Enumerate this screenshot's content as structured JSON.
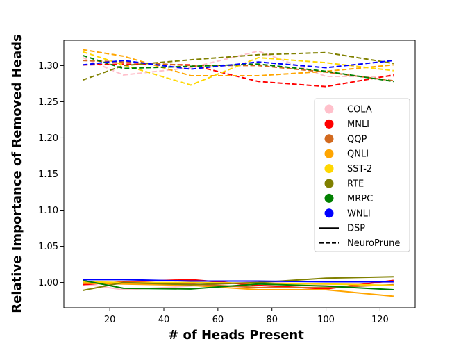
{
  "chart_data": {
    "type": "line",
    "title": "",
    "xlabel": "# of Heads Present",
    "ylabel": "Relative Importance of Removed Heads",
    "xlim": [
      3,
      133
    ],
    "ylim": [
      0.965,
      1.335
    ],
    "xticks": [
      20,
      40,
      60,
      80,
      100,
      120
    ],
    "yticks": [
      1.0,
      1.05,
      1.1,
      1.15,
      1.2,
      1.25,
      1.3
    ],
    "xtick_labels": [
      "20",
      "40",
      "60",
      "80",
      "100",
      "120"
    ],
    "ytick_labels": [
      "1.00",
      "1.05",
      "1.10",
      "1.15",
      "1.20",
      "1.25",
      "1.30"
    ],
    "x": [
      10,
      25,
      50,
      75,
      100,
      125
    ],
    "series": [
      {
        "name": "COLA",
        "method": "DSP",
        "color": "#ffc0cb",
        "values": [
          0.998,
          0.99,
          0.995,
          1.001,
          0.997,
          1.0
        ]
      },
      {
        "name": "MNLI",
        "method": "DSP",
        "color": "#ff0000",
        "values": [
          0.997,
          1.001,
          1.004,
          0.996,
          0.991,
          1.003
        ]
      },
      {
        "name": "QQP",
        "method": "DSP",
        "color": "#d2691e",
        "values": [
          0.999,
          1.0,
          0.998,
          0.993,
          0.993,
          0.997
        ]
      },
      {
        "name": "QNLI",
        "method": "DSP",
        "color": "#ffa500",
        "values": [
          0.999,
          0.998,
          0.996,
          0.99,
          0.99,
          0.981
        ]
      },
      {
        "name": "SST-2",
        "method": "DSP",
        "color": "#ffd700",
        "values": [
          1.001,
          1.0,
          1.0,
          0.999,
          0.998,
          0.996
        ]
      },
      {
        "name": "RTE",
        "method": "DSP",
        "color": "#808000",
        "values": [
          0.989,
          1.0,
          0.997,
          1.0,
          1.006,
          1.008
        ]
      },
      {
        "name": "MRPC",
        "method": "DSP",
        "color": "#008000",
        "values": [
          1.003,
          0.992,
          0.991,
          0.998,
          0.995,
          0.99
        ]
      },
      {
        "name": "WNLI",
        "method": "DSP",
        "color": "#0000ff",
        "values": [
          1.004,
          1.004,
          1.002,
          1.002,
          1.001,
          1.001
        ]
      },
      {
        "name": "COLA",
        "method": "NeuroPrune",
        "color": "#ffc0cb",
        "values": [
          1.311,
          1.287,
          1.297,
          1.32,
          1.285,
          1.285
        ]
      },
      {
        "name": "MNLI",
        "method": "NeuroPrune",
        "color": "#ff0000",
        "values": [
          1.301,
          1.302,
          1.301,
          1.278,
          1.271,
          1.287
        ]
      },
      {
        "name": "QQP",
        "method": "NeuroPrune",
        "color": "#d2691e",
        "values": [
          1.307,
          1.305,
          1.3,
          1.3,
          1.291,
          1.279
        ]
      },
      {
        "name": "QNLI",
        "method": "NeuroPrune",
        "color": "#ffa500",
        "values": [
          1.322,
          1.313,
          1.286,
          1.286,
          1.292,
          1.301
        ]
      },
      {
        "name": "SST-2",
        "method": "NeuroPrune",
        "color": "#ffd700",
        "values": [
          1.319,
          1.301,
          1.273,
          1.311,
          1.304,
          1.293
        ]
      },
      {
        "name": "RTE",
        "method": "NeuroPrune",
        "color": "#808000",
        "values": [
          1.28,
          1.3,
          1.308,
          1.315,
          1.318,
          1.303
        ]
      },
      {
        "name": "MRPC",
        "method": "NeuroPrune",
        "color": "#008000",
        "values": [
          1.314,
          1.296,
          1.299,
          1.302,
          1.292,
          1.278
        ]
      },
      {
        "name": "WNLI",
        "method": "NeuroPrune",
        "color": "#0000ff",
        "values": [
          1.301,
          1.307,
          1.295,
          1.305,
          1.297,
          1.307
        ]
      }
    ],
    "legend": {
      "placement": "center-right",
      "tasks": [
        {
          "label": "COLA",
          "color": "#ffc0cb"
        },
        {
          "label": "MNLI",
          "color": "#ff0000"
        },
        {
          "label": "QQP",
          "color": "#d2691e"
        },
        {
          "label": "QNLI",
          "color": "#ffa500"
        },
        {
          "label": "SST-2",
          "color": "#ffd700"
        },
        {
          "label": "RTE",
          "color": "#808000"
        },
        {
          "label": "MRPC",
          "color": "#008000"
        },
        {
          "label": "WNLI",
          "color": "#0000ff"
        }
      ],
      "methods": [
        {
          "label": "DSP",
          "style": "solid"
        },
        {
          "label": "NeuroPrune",
          "style": "dashed"
        }
      ]
    }
  }
}
